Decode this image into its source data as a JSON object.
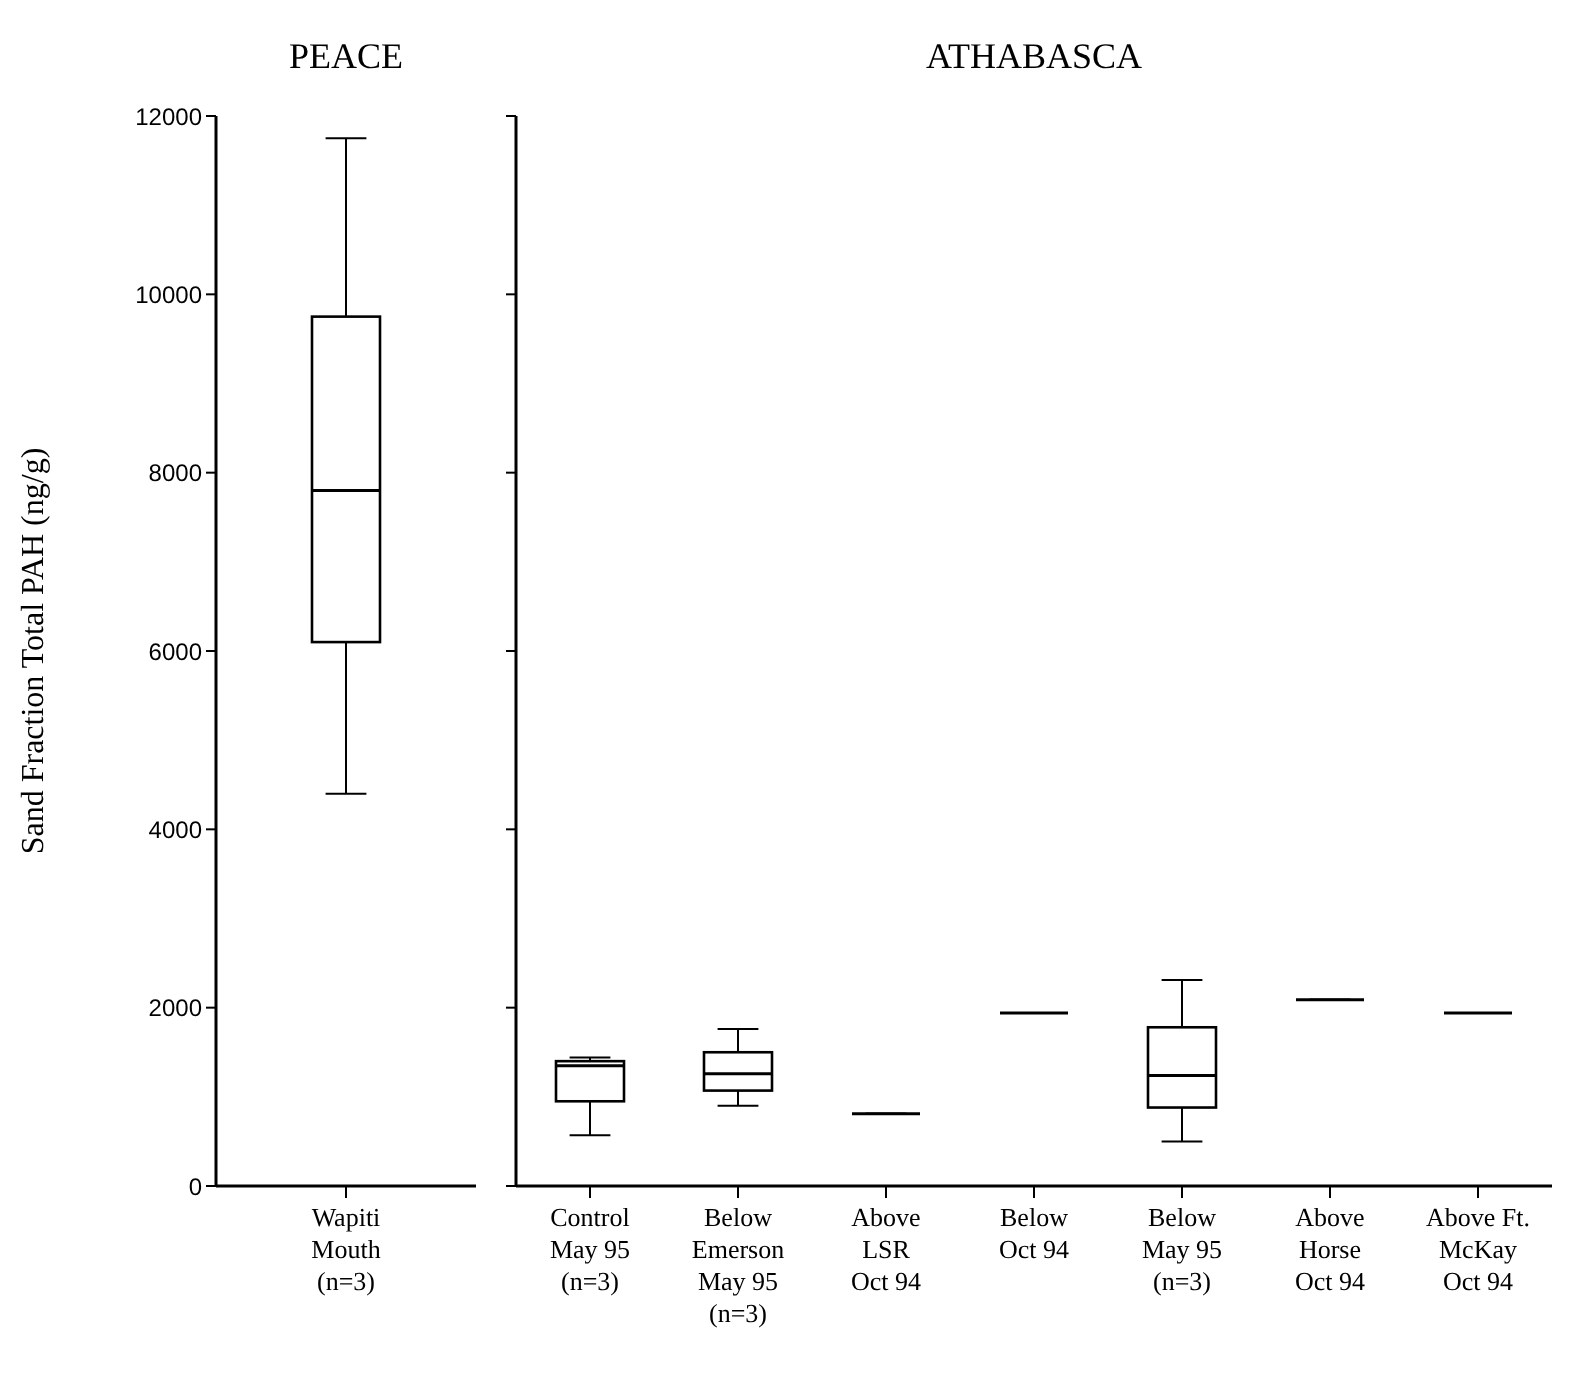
{
  "chart_data": [
    {
      "type": "box",
      "title": "PEACE",
      "ylabel": "Sand Fraction Total PAH (ng/g)",
      "categories": [
        "Wapiti\nMouth\n(n=3)"
      ],
      "boxes": [
        {
          "low": 4400,
          "q1": 6100,
          "median": 7800,
          "q3": 9750,
          "high": 11750
        }
      ],
      "ylim": [
        0,
        12000
      ],
      "yticks": [
        0,
        2000,
        4000,
        6000,
        8000,
        10000,
        12000
      ]
    },
    {
      "type": "box",
      "title": "ATHABASCA",
      "categories": [
        "Control\nMay 95\n(n=3)",
        "Below\nEmerson\nMay 95\n(n=3)",
        "Above\nLSR\nOct 94",
        "Below\nOct 94",
        "Below\nMay 95\n(n=3)",
        "Above\nHorse\nOct 94",
        "Above Ft.\nMcKay\nOct 94"
      ],
      "boxes": [
        {
          "low": 570,
          "q1": 950,
          "median": 1350,
          "q3": 1400,
          "high": 1440
        },
        {
          "low": 900,
          "q1": 1070,
          "median": 1260,
          "q3": 1500,
          "high": 1760
        },
        {
          "low": 810,
          "q1": 810,
          "median": 810,
          "q3": 810,
          "high": 810
        },
        {
          "low": 1940,
          "q1": 1940,
          "median": 1940,
          "q3": 1940,
          "high": 1940
        },
        {
          "low": 500,
          "q1": 880,
          "median": 1240,
          "q3": 1780,
          "high": 2310
        },
        {
          "low": 2090,
          "q1": 2090,
          "median": 2090,
          "q3": 2090,
          "high": 2090
        },
        {
          "low": 1940,
          "q1": 1940,
          "median": 1940,
          "q3": 1940,
          "high": 1940
        }
      ],
      "ylim": [
        0,
        12000
      ],
      "yticks": [
        0,
        2000,
        4000,
        6000,
        8000,
        10000,
        12000
      ],
      "tick_labels": "x"
    }
  ]
}
